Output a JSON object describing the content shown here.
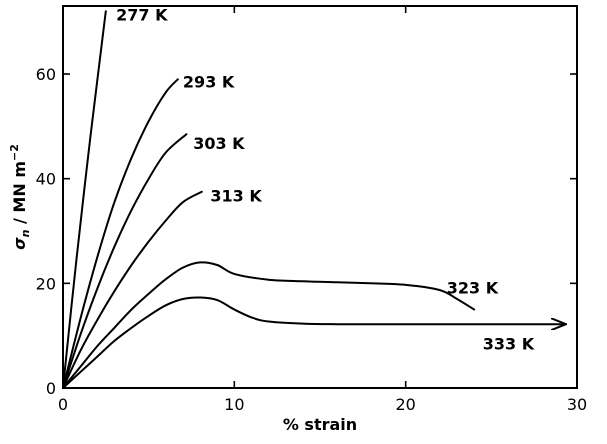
{
  "chart_data": {
    "type": "line",
    "title": "",
    "xlabel": "% strain",
    "ylabel_main": "σ",
    "ylabel_sub": "n",
    "ylabel_unit": " / MN m",
    "ylabel_sup": "−2",
    "xlim": [
      0,
      30
    ],
    "ylim": [
      0,
      73
    ],
    "x_ticks": [
      0,
      10,
      20,
      30
    ],
    "y_ticks": [
      0,
      20,
      40,
      60
    ],
    "grid": false,
    "legend": "none (series labelled at curve ends)",
    "series": [
      {
        "name": "277 K",
        "label_at": [
          3.1,
          71.4
        ],
        "x": [
          0,
          0.8,
          1.6,
          2.5
        ],
        "y": [
          0,
          25,
          48,
          72
        ]
      },
      {
        "name": "293 K",
        "label_at": [
          7.0,
          58.6
        ],
        "x": [
          0,
          1,
          2,
          3,
          4,
          5,
          6,
          6.7
        ],
        "y": [
          0,
          13,
          25,
          35.5,
          44,
          51,
          56.5,
          59
        ]
      },
      {
        "name": "303 K",
        "label_at": [
          7.6,
          46.8
        ],
        "x": [
          0,
          1,
          2,
          3,
          4,
          5,
          6,
          7.2
        ],
        "y": [
          0,
          10,
          19,
          27,
          34,
          40,
          45,
          48.5
        ]
      },
      {
        "name": "313 K",
        "label_at": [
          8.6,
          36.8
        ],
        "x": [
          0,
          1,
          2,
          3,
          4,
          5,
          6,
          7,
          8.1
        ],
        "y": [
          0,
          7,
          13,
          18.5,
          23.5,
          28,
          32,
          35.5,
          37.5
        ]
      },
      {
        "name": "323 K",
        "label_at": [
          22.4,
          19.2
        ],
        "x": [
          0,
          1,
          2,
          3,
          4,
          5,
          6,
          7,
          8,
          9,
          10,
          12,
          14,
          16,
          18,
          20,
          22,
          23,
          24
        ],
        "y": [
          0,
          4,
          8,
          11.5,
          15,
          18,
          20.8,
          23,
          24,
          23.5,
          21.8,
          20.7,
          20.4,
          20.2,
          20,
          19.7,
          18.7,
          17,
          15
        ]
      },
      {
        "name": "333 K",
        "label_at": [
          24.5,
          8.5
        ],
        "x": [
          0,
          1,
          2,
          3,
          4,
          5,
          6,
          7,
          8,
          9,
          10,
          11,
          12,
          14,
          16,
          18,
          20,
          24,
          29.3
        ],
        "y": [
          0,
          3,
          6,
          9,
          11.5,
          13.8,
          15.8,
          17,
          17.3,
          16.8,
          15,
          13.5,
          12.7,
          12.3,
          12.2,
          12.2,
          12.2,
          12.2,
          12.2
        ],
        "arrow_end": true
      }
    ]
  }
}
